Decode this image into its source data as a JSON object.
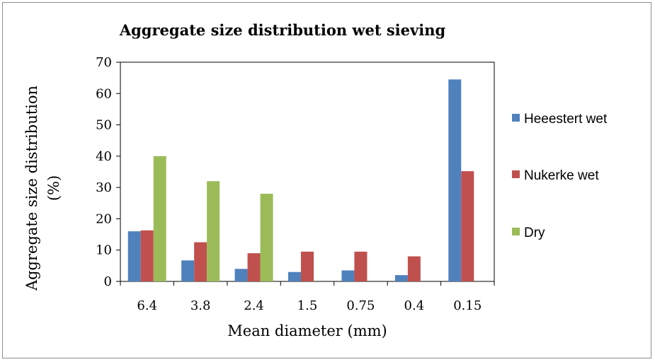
{
  "chart_data": {
    "type": "bar",
    "title": "Aggregate size distribution wet sieving",
    "xlabel": "Mean diameter (mm)",
    "ylabel_lines": [
      "Aggregate size distribution",
      "(%)"
    ],
    "categories": [
      "6.4",
      "3.8",
      "2.4",
      "1.5",
      "0.75",
      "0.4",
      "0.15"
    ],
    "ylim": [
      0,
      70
    ],
    "yticks": [
      "0",
      "10",
      "20",
      "30",
      "40",
      "50",
      "60",
      "70"
    ],
    "grid": false,
    "legend_position": "right",
    "series": [
      {
        "name": "Heeestert wet",
        "color": "#4f81bd",
        "values": [
          16.0,
          6.7,
          4.0,
          3.0,
          3.5,
          2.0,
          64.5
        ]
      },
      {
        "name": "Nukerke wet",
        "color": "#c0504d",
        "values": [
          16.3,
          12.5,
          9.0,
          9.5,
          9.5,
          8.0,
          35.2
        ]
      },
      {
        "name": "Dry",
        "color": "#9bbb59",
        "values": [
          40.0,
          32.0,
          28.0,
          0,
          0,
          0,
          0
        ]
      }
    ]
  }
}
